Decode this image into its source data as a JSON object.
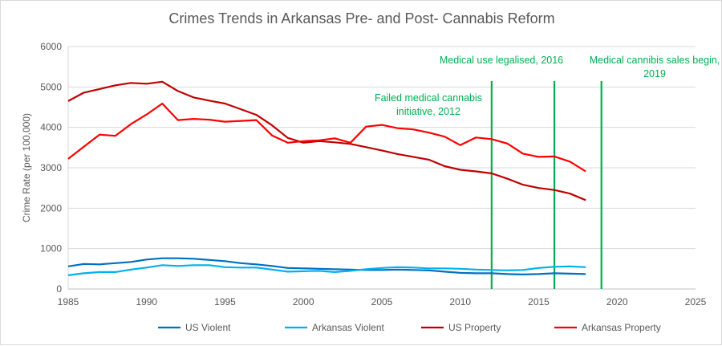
{
  "chart_data": {
    "type": "line",
    "title": "Crimes Trends in Arkansas Pre- and Post- Cannabis Reform",
    "xlabel": "",
    "ylabel": "Crime Rate (per 100,000)",
    "xlim": [
      1985,
      2025
    ],
    "ylim": [
      0,
      6000
    ],
    "x_ticks": [
      "1985",
      "1990",
      "1995",
      "2000",
      "2005",
      "2010",
      "2015",
      "2020",
      "2025"
    ],
    "y_ticks": [
      "0",
      "1000",
      "2000",
      "3000",
      "4000",
      "5000",
      "6000"
    ],
    "grid": true,
    "legend": "bottom",
    "x": [
      1985,
      1986,
      1987,
      1988,
      1989,
      1990,
      1991,
      1992,
      1993,
      1994,
      1995,
      1996,
      1997,
      1998,
      1999,
      2000,
      2001,
      2002,
      2003,
      2004,
      2005,
      2006,
      2007,
      2008,
      2009,
      2010,
      2011,
      2012,
      2013,
      2014,
      2015,
      2016,
      2017,
      2018
    ],
    "series": [
      {
        "name": "US Violent",
        "color": "#0070C0",
        "values": [
          560,
          620,
          610,
          640,
          670,
          730,
          760,
          760,
          750,
          720,
          690,
          640,
          610,
          570,
          520,
          510,
          500,
          490,
          480,
          470,
          470,
          480,
          470,
          460,
          430,
          400,
          390,
          390,
          370,
          360,
          370,
          390,
          380,
          370
        ]
      },
      {
        "name": "Arkansas Violent",
        "color": "#00B0F0",
        "values": [
          340,
          390,
          420,
          420,
          480,
          530,
          590,
          570,
          590,
          590,
          540,
          530,
          530,
          480,
          430,
          440,
          450,
          420,
          450,
          490,
          520,
          540,
          530,
          510,
          510,
          500,
          480,
          470,
          460,
          470,
          520,
          550,
          560,
          540
        ]
      },
      {
        "name": "US Property",
        "color": "#C00000",
        "values": [
          4650,
          4860,
          4950,
          5040,
          5100,
          5080,
          5130,
          4900,
          4740,
          4660,
          4590,
          4450,
          4310,
          4050,
          3740,
          3620,
          3660,
          3630,
          3590,
          3510,
          3430,
          3340,
          3270,
          3200,
          3040,
          2950,
          2910,
          2860,
          2730,
          2580,
          2500,
          2450,
          2360,
          2200
        ]
      },
      {
        "name": "Arkansas Property",
        "color": "#FF0000",
        "values": [
          3220,
          3520,
          3820,
          3790,
          4080,
          4320,
          4590,
          4180,
          4210,
          4190,
          4140,
          4160,
          4180,
          3800,
          3620,
          3660,
          3680,
          3730,
          3620,
          4020,
          4060,
          3980,
          3950,
          3870,
          3770,
          3560,
          3750,
          3710,
          3600,
          3350,
          3270,
          3280,
          3150,
          2910
        ]
      }
    ],
    "annotations": [
      {
        "x": 2012,
        "color": "#00B050",
        "lines": [
          "Failed medical cannabis",
          "initiative, 2012"
        ]
      },
      {
        "x": 2016,
        "color": "#00B050",
        "lines": [
          "Medical use legalised, 2016"
        ]
      },
      {
        "x": 2019,
        "color": "#00B050",
        "lines": [
          "Medical cannibis sales begin,",
          "2019"
        ]
      }
    ]
  }
}
